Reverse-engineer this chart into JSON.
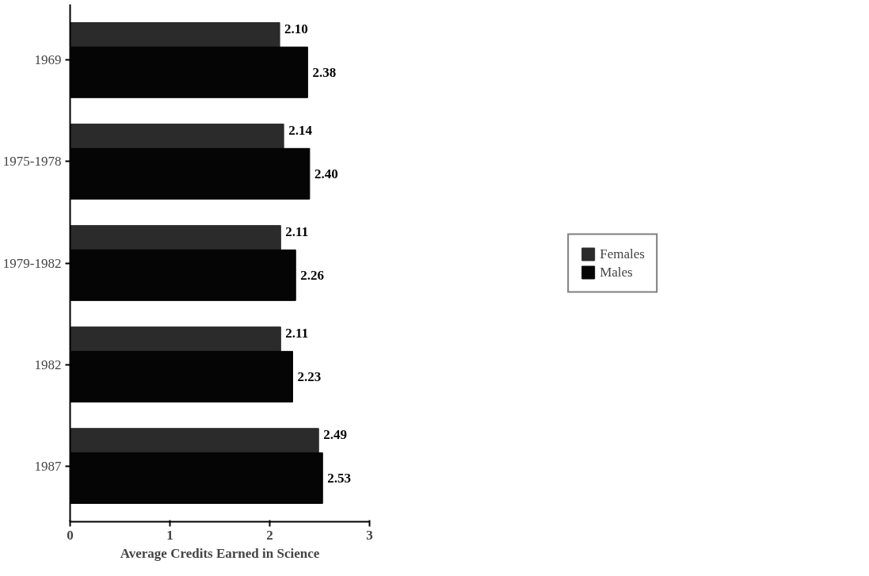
{
  "chart_data": {
    "type": "bar",
    "orientation": "horizontal",
    "xlabel": "Average Credits Earned in Science",
    "categories": [
      "1969",
      "1975-1978",
      "1979-1982",
      "1982",
      "1987"
    ],
    "series": [
      {
        "name": "Females",
        "color": "#2b2b2b",
        "values": [
          2.1,
          2.14,
          2.11,
          2.11,
          2.49
        ],
        "value_labels": [
          "2.10",
          "2.14",
          "2.11",
          "2.11",
          "2.49"
        ]
      },
      {
        "name": "Males",
        "color": "#050505",
        "values": [
          2.38,
          2.4,
          2.26,
          2.23,
          2.53
        ],
        "value_labels": [
          "2.38",
          "2.40",
          "2.26",
          "2.23",
          "2.53"
        ]
      }
    ],
    "xlim": [
      0,
      3
    ],
    "xticks": [
      0,
      1,
      2,
      3
    ],
    "legend": "right",
    "grid": false
  }
}
